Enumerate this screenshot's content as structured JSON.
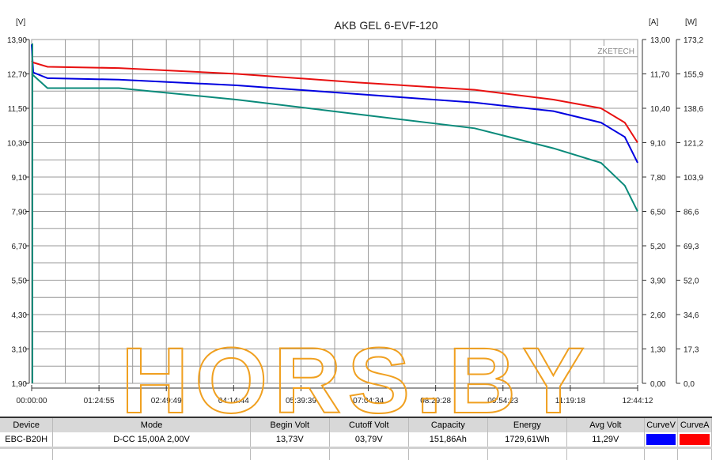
{
  "chart_data": {
    "type": "line",
    "title": "AKB GEL  6-EVF-120",
    "watermark": "HORS.BY",
    "brand": "ZKETECH",
    "grid": true,
    "x": [
      "00:00:00",
      "00:02:00",
      "00:20:00",
      "01:50:00",
      "04:19:00",
      "06:49:00",
      "09:18:40",
      "10:58:00",
      "11:58:00",
      "12:28:00",
      "12:44:12"
    ],
    "xticks": [
      "00:00:00",
      "01:24:55",
      "02:49:49",
      "04:14:44",
      "05:39:39",
      "07:04:34",
      "08:29:28",
      "09:54:23",
      "11:19:18",
      "12:44:12"
    ],
    "xlim": [
      "00:00:00",
      "12:44:12"
    ],
    "axes": [
      {
        "unit": "[V]",
        "side": "left",
        "ylim": [
          1.9,
          13.9
        ],
        "ticks": [
          "1,90",
          "3,10",
          "4,30",
          "5,50",
          "6,70",
          "7,90",
          "9,10",
          "10,30",
          "11,50",
          "12,70",
          "13,90"
        ]
      },
      {
        "unit": "[A]",
        "side": "right",
        "ylim": [
          0,
          13
        ],
        "ticks": [
          "0,00",
          "1,30",
          "2,60",
          "3,90",
          "5,20",
          "6,50",
          "7,80",
          "9,10",
          "10,40",
          "11,70",
          "13,00"
        ]
      },
      {
        "unit": "[W]",
        "side": "right",
        "ylim": [
          0,
          173.2
        ],
        "ticks": [
          "0,0",
          "17,3",
          "34,6",
          "52,0",
          "69,3",
          "86,6",
          "103,9",
          "121,2",
          "138,6",
          "155,9",
          "173,2"
        ]
      }
    ],
    "series": [
      {
        "name": "CurveV",
        "axis": 0,
        "color": "#0000e0",
        "values": [
          13.73,
          12.75,
          12.55,
          12.5,
          12.3,
          12.0,
          11.7,
          11.4,
          11.0,
          10.5,
          9.6
        ]
      },
      {
        "name": "CurveA",
        "axis": 1,
        "color": "#e81010",
        "values": [
          12.2,
          12.13,
          11.97,
          11.92,
          11.7,
          11.38,
          11.1,
          10.73,
          10.4,
          9.86,
          9.1
        ]
      },
      {
        "axis": 2,
        "color": "#0a8a7a",
        "values": [
          155.9,
          155.2,
          148.7,
          148.7,
          142.9,
          135.7,
          128.5,
          118.4,
          111.1,
          99.6,
          86.6
        ]
      }
    ]
  },
  "table": {
    "headers": [
      "Device",
      "Mode",
      "Begin Volt",
      "Cutoff Volt",
      "Capacity",
      "Energy",
      "Avg Volt",
      "CurveV",
      "CurveA"
    ],
    "row": [
      "EBC-B20H",
      "D-CC  15,00A  2,00V",
      "13,73V",
      "03,79V",
      "151,86Ah",
      "1729,61Wh",
      "11,29V"
    ],
    "colors": [
      "#0000ff",
      "#ff0000"
    ]
  }
}
